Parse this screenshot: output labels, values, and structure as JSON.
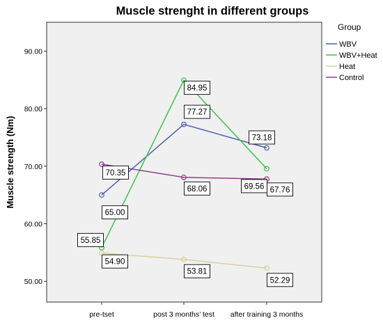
{
  "chart_data": {
    "type": "line",
    "title": "Muscle strenght in different groups",
    "xlabel": "",
    "ylabel": "Muscle strength (Nm)",
    "categories": [
      "pre-tset",
      "post 3 months’ test",
      "after training 3 months"
    ],
    "y_ticks": [
      "50.00",
      "60.00",
      "70.00",
      "80.00",
      "90.00"
    ],
    "ylim": [
      50,
      90
    ],
    "grid": false,
    "legend_title": "Group",
    "legend_position": "right",
    "series": [
      {
        "name": "WBV",
        "color": "#4f5fb0",
        "values": [
          65.0,
          77.27,
          73.18
        ],
        "labels": [
          "65.00",
          "77.27",
          "73.18"
        ]
      },
      {
        "name": "WBV+Heat",
        "color": "#3ec24c",
        "values": [
          55.85,
          84.95,
          69.56
        ],
        "labels": [
          "55.85",
          "84.95",
          "69.56"
        ]
      },
      {
        "name": "Heat",
        "color": "#d8d39a",
        "values": [
          54.9,
          53.81,
          52.29
        ],
        "labels": [
          "54.90",
          "53.81",
          "52.29"
        ]
      },
      {
        "name": "Control",
        "color": "#8b3f8f",
        "values": [
          70.35,
          68.06,
          67.76
        ],
        "labels": [
          "70.35",
          "68.06",
          "67.76"
        ]
      }
    ]
  }
}
